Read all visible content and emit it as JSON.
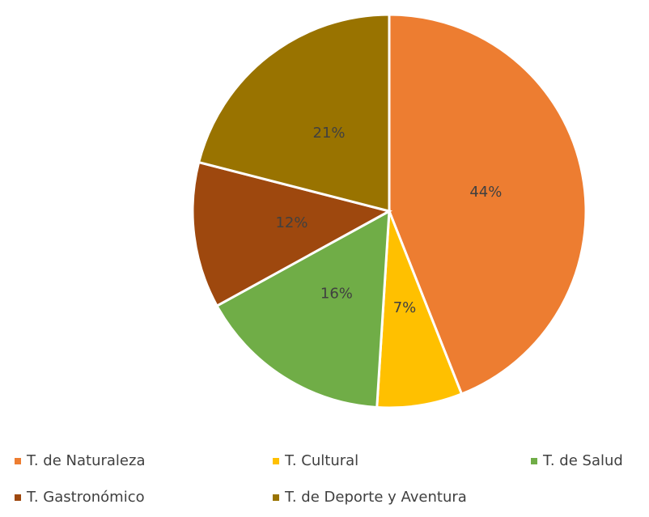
{
  "chart_data": {
    "type": "pie",
    "categories": [
      "T. de Naturaleza",
      "T. Cultural",
      "T. de Salud",
      "T. Gastronómico",
      "T. de Deporte y Aventura"
    ],
    "values": [
      44,
      7,
      16,
      12,
      21
    ],
    "value_labels": [
      "44%",
      "7%",
      "16%",
      "12%",
      "21%"
    ],
    "colors": [
      "#ED7D31",
      "#FFC000",
      "#70AD47",
      "#9E480E",
      "#997300"
    ],
    "legend": "bottom"
  }
}
